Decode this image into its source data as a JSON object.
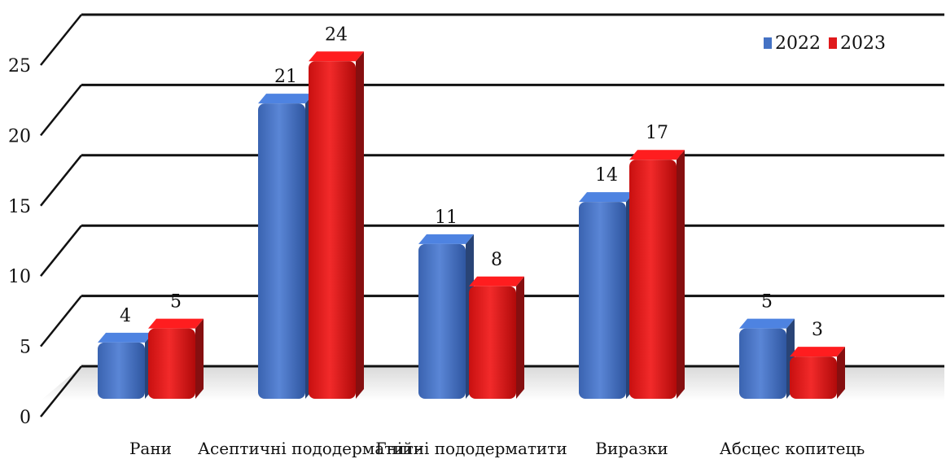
{
  "chart_data": {
    "type": "bar",
    "title": "",
    "xlabel": "",
    "ylabel": "",
    "categories": [
      "Рани",
      "Асептичні пододерматити",
      "Гнійні пододерматити",
      "Виразки",
      "Абсцес копитець"
    ],
    "series": [
      {
        "name": "2022",
        "values": [
          4,
          21,
          11,
          14,
          5
        ],
        "color": "#4472C4"
      },
      {
        "name": "2023",
        "values": [
          5,
          24,
          8,
          17,
          3
        ],
        "color": "#E0191B"
      }
    ],
    "ylim": [
      0,
      25
    ],
    "yticks": [
      0,
      5,
      10,
      15,
      20,
      25
    ],
    "grid": true,
    "legend_position": "top-right",
    "style": "3d-column"
  }
}
